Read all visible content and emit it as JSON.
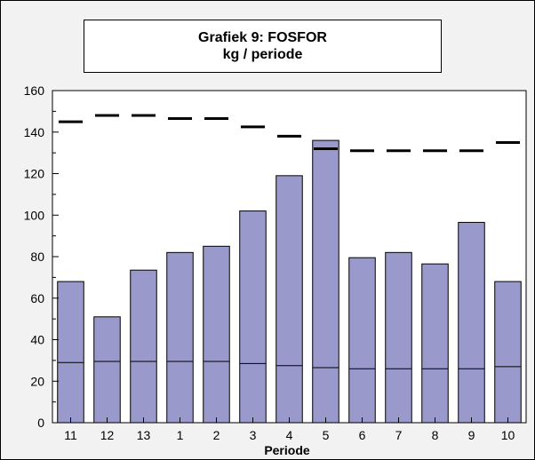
{
  "chart_data": {
    "type": "bar",
    "title": "Grafiek 9: FOSFOR",
    "subtitle": "kg / periode",
    "xlabel": "Periode",
    "ylabel": "",
    "categories": [
      "11",
      "12",
      "13",
      "1",
      "2",
      "3",
      "4",
      "5",
      "6",
      "7",
      "8",
      "9",
      "10"
    ],
    "series": [
      {
        "values": [
          68,
          51,
          73.5,
          82,
          85,
          102,
          119,
          136,
          79.5,
          82,
          76.5,
          96.5,
          68
        ]
      },
      {
        "values": [
          29,
          29.5,
          29.5,
          29.5,
          29.5,
          28.5,
          27.5,
          26.5,
          26,
          26,
          26,
          26,
          27
        ]
      },
      {
        "values": [
          145,
          148,
          148,
          146.5,
          146.5,
          142.5,
          138,
          132,
          131,
          131,
          131,
          131,
          135
        ]
      }
    ],
    "ylim": [
      0,
      160
    ],
    "yticks": [
      0,
      20,
      40,
      60,
      80,
      100,
      120,
      140,
      160
    ],
    "grid": false,
    "colors": {
      "bar": "#9999cc",
      "line": "#000000",
      "plot_bg": "#ffffff",
      "chart_bg": "#f2f2f2"
    }
  }
}
